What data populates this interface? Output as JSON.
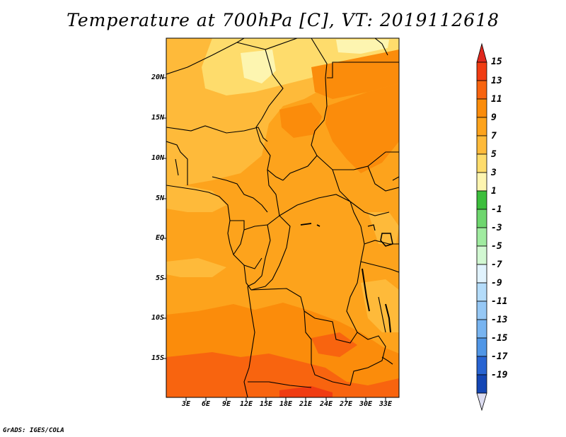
{
  "title": "Temperature at 700hPa [C], VT: 2019112618",
  "credit": "GrADS: IGES/COLA",
  "map": {
    "variable": "Temperature at 700hPa",
    "units": "C",
    "valid_time": "2019112618",
    "lat_labels": [
      "20N",
      "15N",
      "10N",
      "5N",
      "EQ",
      "5S",
      "10S",
      "15S"
    ],
    "lon_labels": [
      "3E",
      "6E",
      "9E",
      "12E",
      "15E",
      "18E",
      "21E",
      "24E",
      "27E",
      "30E",
      "33E"
    ],
    "region": "Central Africa"
  },
  "colorbar": {
    "labels": [
      "15",
      "13",
      "11",
      "9",
      "7",
      "5",
      "3",
      "1",
      "-1",
      "-3",
      "-5",
      "-7",
      "-9",
      "-11",
      "-13",
      "-15",
      "-17",
      "-19"
    ],
    "top_arrow_color": "#e0281e",
    "colors": [
      "#f03c12",
      "#f8640f",
      "#fb8c0b",
      "#fda31c",
      "#feba3a",
      "#fedc6c",
      "#fdf5b0",
      "#3cbe3c",
      "#6ed66e",
      "#a0eba0",
      "#d2f8d2",
      "#e1f3fd",
      "#b4dcfa",
      "#96c8f5",
      "#78b4f0",
      "#5096e6",
      "#2864d2",
      "#1446b4",
      "#0a1e8c"
    ],
    "bottom_arrow_color": "#dcdcf0"
  }
}
